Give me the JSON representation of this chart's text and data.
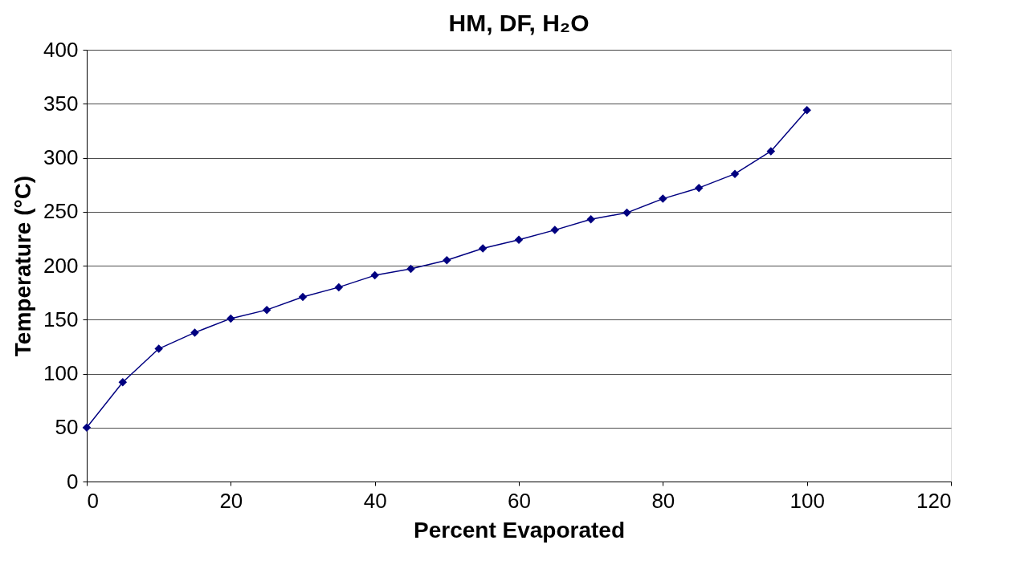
{
  "chart_data": {
    "type": "line",
    "title": "HM, DF, H₂O",
    "xlabel": "Percent Evaporated",
    "ylabel": "Temperature (°C)",
    "x": [
      0,
      5,
      10,
      15,
      20,
      25,
      30,
      35,
      40,
      45,
      50,
      55,
      60,
      65,
      70,
      75,
      80,
      85,
      90,
      95,
      100
    ],
    "series": [
      {
        "color": "#000080",
        "values": [
          50,
          92,
          123,
          138,
          151,
          159,
          171,
          180,
          191,
          197,
          205,
          216,
          224,
          233,
          243,
          249,
          262,
          272,
          285,
          306,
          344
        ]
      }
    ],
    "xlim": [
      0,
      120
    ],
    "xticks": [
      0,
      20,
      40,
      60,
      80,
      100,
      120
    ],
    "ylim": [
      0,
      400
    ],
    "yticks": [
      0,
      50,
      100,
      150,
      200,
      250,
      300,
      350,
      400
    ],
    "grid": "y",
    "marker": "diamond",
    "line_style": "solid"
  }
}
